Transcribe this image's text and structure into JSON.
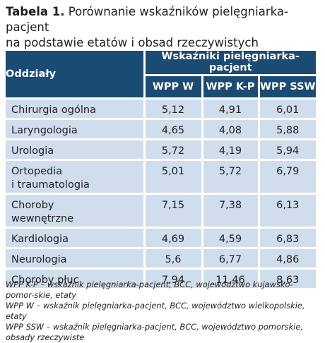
{
  "caption": {
    "label": "Tabela 1.",
    "line1": " Porównanie wskaźników pielęgniarka-pacjent",
    "line2": "na podstawie etatów i obsad rzeczywistych"
  },
  "table": {
    "dept_header": "Oddziały",
    "group_header": "Wskaźniki pielęgniarka-pacjent",
    "sub_headers": [
      "WPP W",
      "WPP K-P",
      "WPP SSW"
    ],
    "rows": [
      {
        "name": [
          "Chirurgia ogólna"
        ],
        "values": [
          "5,12",
          "4,91",
          "6,01"
        ]
      },
      {
        "name": [
          "Laryngologia"
        ],
        "values": [
          "4,65",
          "4,08",
          "5,88"
        ]
      },
      {
        "name": [
          "Urologia"
        ],
        "values": [
          "5,72",
          "4,19",
          "5,94"
        ]
      },
      {
        "name": [
          "Ortopedia",
          "i traumatologia"
        ],
        "values": [
          "5,01",
          "5,72",
          "6,79"
        ]
      },
      {
        "name": [
          "Choroby",
          "wewnętrzne"
        ],
        "values": [
          "7,15",
          "7,38",
          "6,13"
        ]
      },
      {
        "name": [
          "Kardiologia"
        ],
        "values": [
          "4,69",
          "4,59",
          "6,83"
        ]
      },
      {
        "name": [
          "Neurologia"
        ],
        "values": [
          "5,6",
          "6,77",
          "4,86"
        ]
      },
      {
        "name": [
          "Choroby płuc"
        ],
        "values": [
          "7,94",
          "11,46",
          "8,63"
        ]
      }
    ]
  },
  "footnotes": [
    "WPP K-P – wskaźnik pielęgniarka-pacjent, BCC, województwo kujawsko-pomor-skie, etaty",
    "WPP W – wskaźnik pielęgniarka-pacjent, BCC, województwo wielkopolskie, etaty",
    "WPP SSW – wskaźnik pielęgniarka-pacjent, BCC, województwo pomorskie, obsady rzeczywiste"
  ]
}
